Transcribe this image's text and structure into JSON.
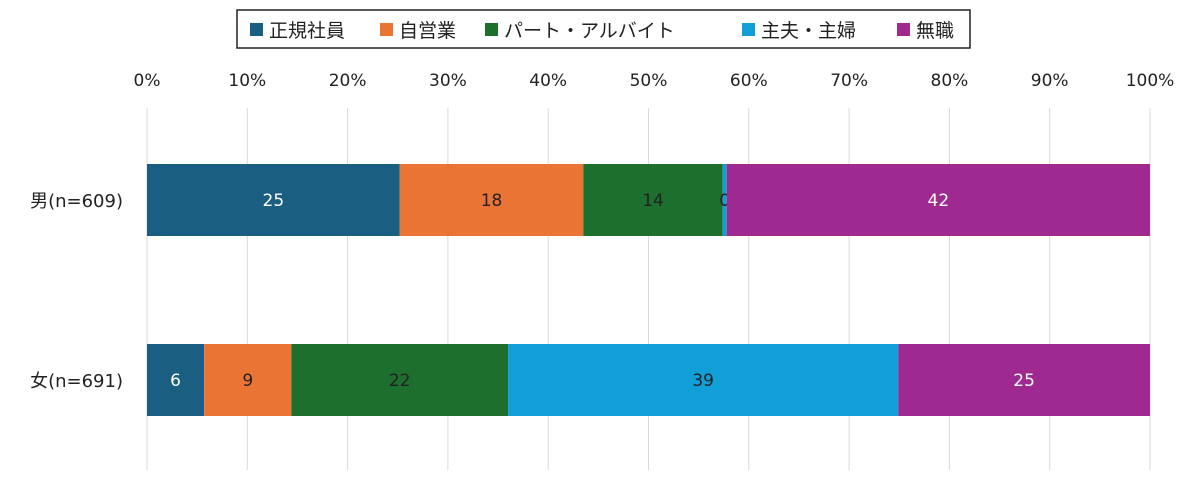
{
  "chart_data": {
    "type": "bar",
    "orientation": "horizontal",
    "stacked": "percent",
    "categories": [
      "男(n=609)",
      "女(n=691)"
    ],
    "series": [
      {
        "name": "正規社員",
        "color": "#1a5f82",
        "label_color": "#ffffff",
        "values": [
          25,
          6
        ]
      },
      {
        "name": "自営業",
        "color": "#ea7433",
        "label_color": "#222222",
        "values": [
          18,
          9
        ]
      },
      {
        "name": "パート・アルバイト",
        "color": "#1d6f2d",
        "label_color": "#222222",
        "values": [
          14,
          22
        ]
      },
      {
        "name": "主夫・主婦",
        "color": "#129ed6",
        "label_color": "#222222",
        "values": [
          0,
          39
        ]
      },
      {
        "name": "無職",
        "color": "#9e2a91",
        "label_color": "#ffffff",
        "values": [
          42,
          25
        ]
      }
    ],
    "segment_fractions": [
      [
        25.2,
        18.3,
        13.9,
        0.4,
        42.2
      ],
      [
        5.7,
        8.7,
        21.6,
        38.9,
        25.1
      ]
    ],
    "xlim": [
      0,
      100
    ],
    "x_ticks": [
      "0%",
      "10%",
      "20%",
      "30%",
      "40%",
      "50%",
      "60%",
      "70%",
      "80%",
      "90%",
      "100%"
    ],
    "grid": true,
    "legend_position": "top"
  }
}
